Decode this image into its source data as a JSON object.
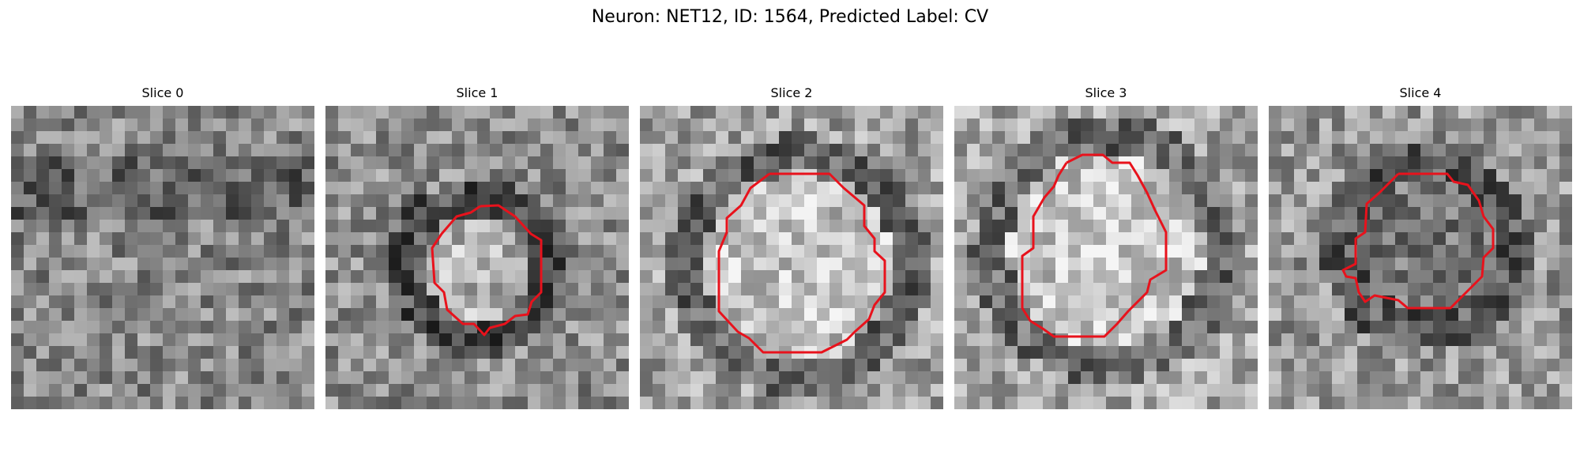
{
  "figure": {
    "title": "Neuron: NET12, ID: 1564, Predicted Label: CV",
    "contour_color": "#e8121c",
    "colormap": "grayscale",
    "panels": [
      {
        "title": "Slice 0",
        "mean_gray": 135,
        "has_contour": false
      },
      {
        "title": "Slice 1",
        "mean_gray": 140,
        "has_contour": true
      },
      {
        "title": "Slice 2",
        "mean_gray": 160,
        "has_contour": true
      },
      {
        "title": "Slice 3",
        "mean_gray": 165,
        "has_contour": true
      },
      {
        "title": "Slice 4",
        "mean_gray": 150,
        "has_contour": true
      }
    ]
  }
}
